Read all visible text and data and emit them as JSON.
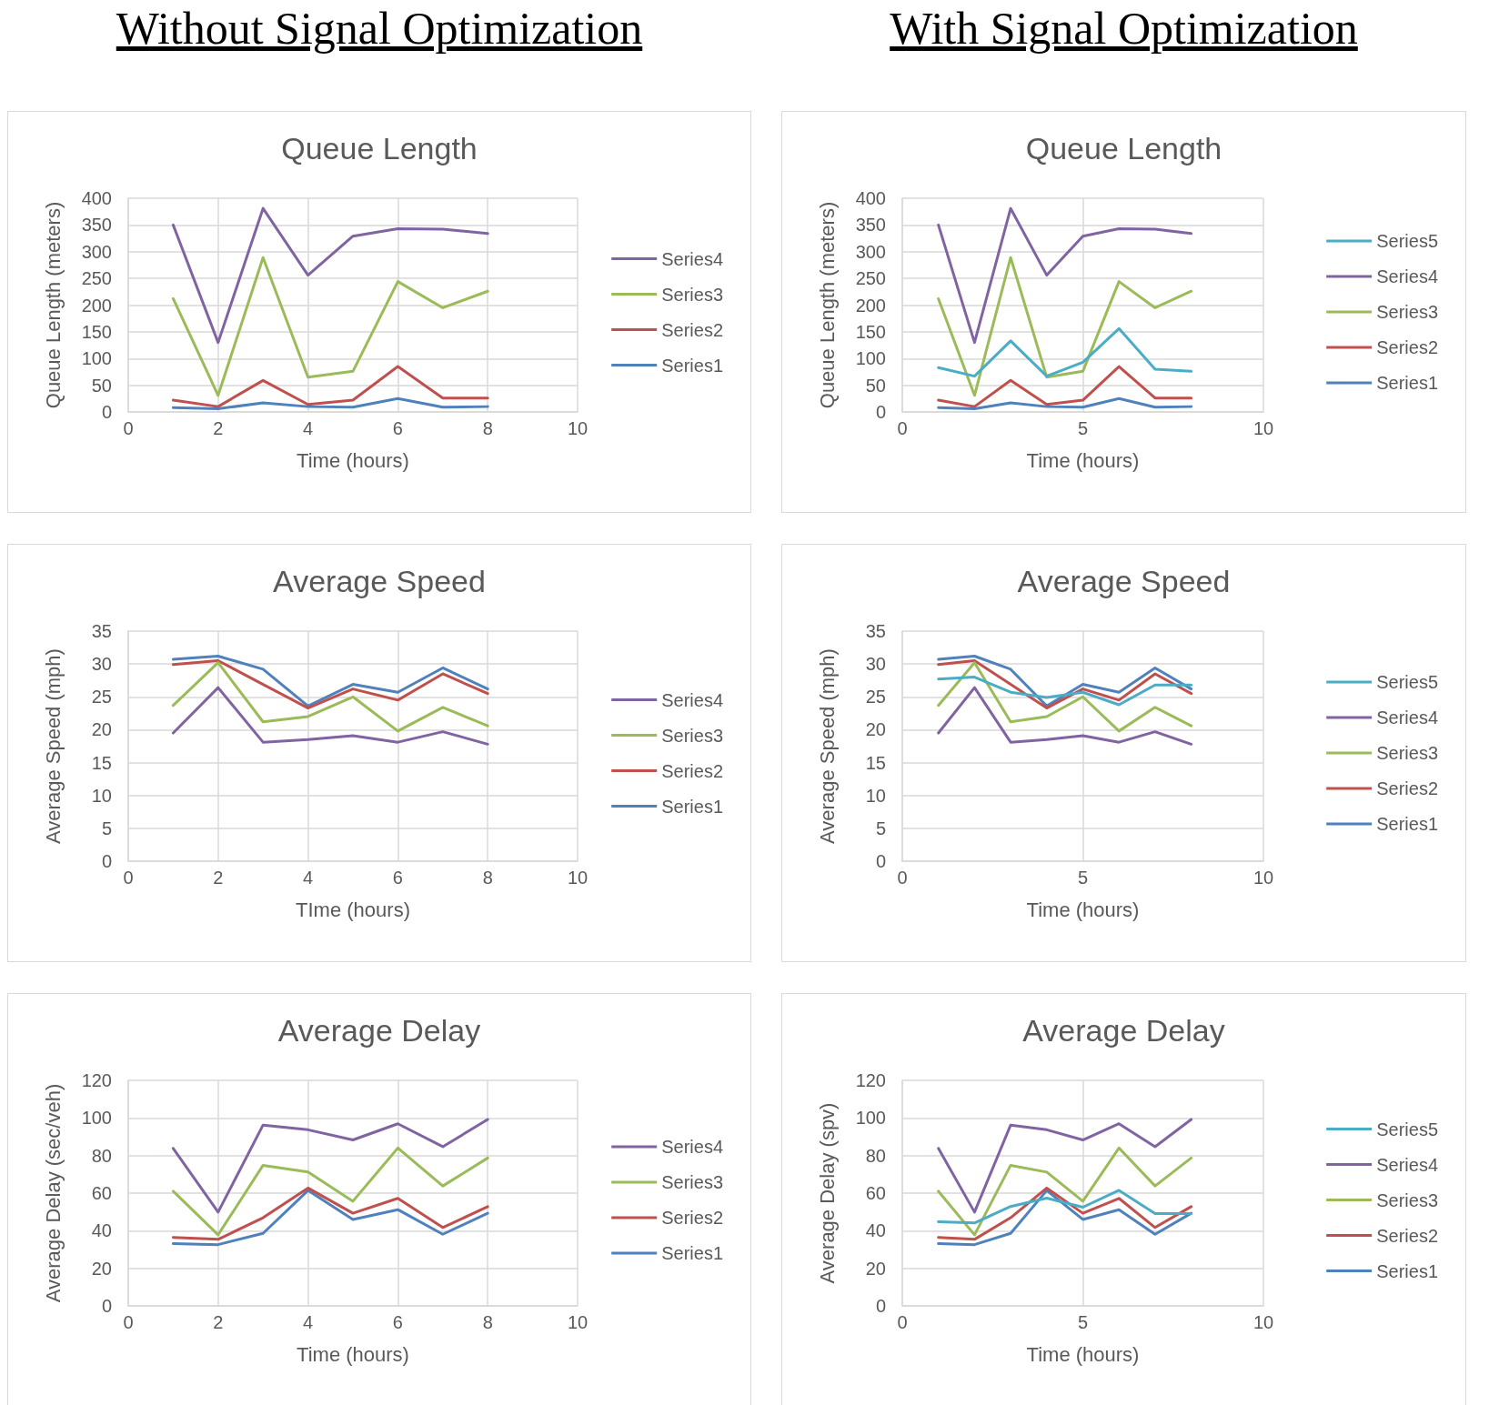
{
  "chart_data": [
    {
      "type": "line",
      "title": "Queue Length",
      "xlabel": "Time (hours)",
      "ylabel": "Queue Length (meters)",
      "annotations": [
        "Without Signal Optimization"
      ],
      "x": [
        1,
        2,
        3,
        4,
        5,
        6,
        7,
        8
      ],
      "xlim": [
        0,
        10
      ],
      "xticks": [
        0,
        2,
        4,
        6,
        8,
        10
      ],
      "ylim": [
        0,
        400
      ],
      "yticks": [
        0,
        50,
        100,
        150,
        200,
        250,
        300,
        350,
        400
      ],
      "grid": true,
      "legend": "right",
      "marker": "none",
      "line_style": "solid",
      "series": [
        {
          "name": "Series1",
          "color": "#4f81bd",
          "values": [
            8,
            6,
            17,
            10,
            9,
            25,
            9,
            10
          ]
        },
        {
          "name": "Series2",
          "color": "#c0504d",
          "values": [
            22,
            10,
            59,
            14,
            22,
            85,
            26,
            26
          ]
        },
        {
          "name": "Series3",
          "color": "#9bbb59",
          "values": [
            212,
            31,
            289,
            65,
            76,
            244,
            195,
            226
          ]
        },
        {
          "name": "Series4",
          "color": "#8064a2",
          "values": [
            350,
            130,
            381,
            256,
            329,
            343,
            342,
            334
          ]
        }
      ]
    },
    {
      "type": "line",
      "title": "Queue Length",
      "xlabel": "Time (hours)",
      "ylabel": "Queue Length (meters)",
      "annotations": [
        "With Signal Optimization"
      ],
      "x": [
        1,
        2,
        3,
        4,
        5,
        6,
        7,
        8
      ],
      "xlim": [
        0,
        10
      ],
      "xticks": [
        0,
        5,
        10
      ],
      "ylim": [
        0,
        400
      ],
      "yticks": [
        0,
        50,
        100,
        150,
        200,
        250,
        300,
        350,
        400
      ],
      "grid": true,
      "legend": "right",
      "marker": "none",
      "line_style": "solid",
      "series": [
        {
          "name": "Series1",
          "color": "#4f81bd",
          "values": [
            8,
            6,
            17,
            10,
            9,
            25,
            9,
            10
          ]
        },
        {
          "name": "Series2",
          "color": "#c0504d",
          "values": [
            22,
            10,
            59,
            14,
            22,
            85,
            26,
            26
          ]
        },
        {
          "name": "Series3",
          "color": "#9bbb59",
          "values": [
            212,
            31,
            289,
            65,
            76,
            244,
            195,
            226
          ]
        },
        {
          "name": "Series4",
          "color": "#8064a2",
          "values": [
            350,
            130,
            381,
            256,
            329,
            343,
            342,
            334
          ]
        },
        {
          "name": "Series5",
          "color": "#4bacc6",
          "values": [
            83,
            67,
            133,
            67,
            93,
            156,
            80,
            76
          ]
        }
      ]
    },
    {
      "type": "line",
      "title": "Average Speed",
      "xlabel": "TIme (hours)",
      "ylabel": "Average Speed (mph)",
      "x": [
        1,
        2,
        3,
        4,
        5,
        6,
        7,
        8
      ],
      "xlim": [
        0,
        10
      ],
      "xticks": [
        0,
        2,
        4,
        6,
        8,
        10
      ],
      "ylim": [
        0,
        35
      ],
      "yticks": [
        0,
        5,
        10,
        15,
        20,
        25,
        30,
        35
      ],
      "grid": true,
      "legend": "right",
      "marker": "none",
      "line_style": "solid",
      "series": [
        {
          "name": "Series1",
          "color": "#4f81bd",
          "values": [
            30.7,
            31.2,
            29.2,
            23.6,
            26.9,
            25.7,
            29.4,
            26.2
          ]
        },
        {
          "name": "Series2",
          "color": "#c0504d",
          "values": [
            29.9,
            30.5,
            26.9,
            23.3,
            26.2,
            24.5,
            28.5,
            25.5
          ]
        },
        {
          "name": "Series3",
          "color": "#9bbb59",
          "values": [
            23.7,
            30.2,
            21.2,
            22.0,
            25.0,
            19.8,
            23.4,
            20.6
          ]
        },
        {
          "name": "Series4",
          "color": "#8064a2",
          "values": [
            19.5,
            26.4,
            18.1,
            18.5,
            19.1,
            18.1,
            19.7,
            17.8
          ]
        }
      ]
    },
    {
      "type": "line",
      "title": "Average Speed",
      "xlabel": "Time (hours)",
      "ylabel": "Average Speed (mph)",
      "x": [
        1,
        2,
        3,
        4,
        5,
        6,
        7,
        8
      ],
      "xlim": [
        0,
        10
      ],
      "xticks": [
        0,
        5,
        10
      ],
      "ylim": [
        0,
        35
      ],
      "yticks": [
        0,
        5,
        10,
        15,
        20,
        25,
        30,
        35
      ],
      "grid": true,
      "legend": "right",
      "marker": "none",
      "line_style": "solid",
      "series": [
        {
          "name": "Series1",
          "color": "#4f81bd",
          "values": [
            30.7,
            31.2,
            29.2,
            23.6,
            26.9,
            25.7,
            29.4,
            26.2
          ]
        },
        {
          "name": "Series2",
          "color": "#c0504d",
          "values": [
            29.9,
            30.5,
            26.9,
            23.3,
            26.2,
            24.5,
            28.5,
            25.5
          ]
        },
        {
          "name": "Series3",
          "color": "#9bbb59",
          "values": [
            23.7,
            30.2,
            21.2,
            22.0,
            25.0,
            19.8,
            23.4,
            20.6
          ]
        },
        {
          "name": "Series4",
          "color": "#8064a2",
          "values": [
            19.5,
            26.4,
            18.1,
            18.5,
            19.1,
            18.1,
            19.7,
            17.8
          ]
        },
        {
          "name": "Series5",
          "color": "#4bacc6",
          "values": [
            27.7,
            28.0,
            25.7,
            24.9,
            25.7,
            23.8,
            26.8,
            26.8
          ]
        }
      ]
    },
    {
      "type": "line",
      "title": "Average Delay",
      "xlabel": "Time (hours)",
      "ylabel": "Average Delay (sec/veh)",
      "x": [
        1,
        2,
        3,
        4,
        5,
        6,
        7,
        8
      ],
      "xlim": [
        0,
        10
      ],
      "xticks": [
        0,
        2,
        4,
        6,
        8,
        10
      ],
      "ylim": [
        0,
        120
      ],
      "yticks": [
        0,
        20,
        40,
        60,
        80,
        100,
        120
      ],
      "grid": true,
      "legend": "right",
      "marker": "none",
      "line_style": "solid",
      "series": [
        {
          "name": "Series1",
          "color": "#4f81bd",
          "values": [
            33.1,
            32.6,
            38.6,
            61.4,
            46,
            51.2,
            38.1,
            49.3
          ]
        },
        {
          "name": "Series2",
          "color": "#c0504d",
          "values": [
            36.4,
            35.4,
            46.9,
            62.7,
            49.3,
            57.2,
            41.7,
            52.8
          ]
        },
        {
          "name": "Series3",
          "color": "#9bbb59",
          "values": [
            61,
            37.8,
            74.8,
            71.2,
            55.7,
            84,
            63.8,
            78.7
          ]
        },
        {
          "name": "Series4",
          "color": "#8064a2",
          "values": [
            83.8,
            49.9,
            96.2,
            93.7,
            88.3,
            96.9,
            84.7,
            99.2
          ]
        }
      ]
    },
    {
      "type": "line",
      "title": "Average Delay",
      "xlabel": "Time (hours)",
      "ylabel": "Average Delay (spv)",
      "x": [
        1,
        2,
        3,
        4,
        5,
        6,
        7,
        8
      ],
      "xlim": [
        0,
        10
      ],
      "xticks": [
        0,
        5,
        10
      ],
      "ylim": [
        0,
        120
      ],
      "yticks": [
        0,
        20,
        40,
        60,
        80,
        100,
        120
      ],
      "grid": true,
      "legend": "right",
      "marker": "none",
      "line_style": "solid",
      "series": [
        {
          "name": "Series1",
          "color": "#4f81bd",
          "values": [
            33.1,
            32.6,
            38.6,
            61.4,
            46,
            51.2,
            38.1,
            49.3
          ]
        },
        {
          "name": "Series2",
          "color": "#c0504d",
          "values": [
            36.4,
            35.4,
            46.9,
            62.7,
            49.3,
            57.2,
            41.7,
            52.8
          ]
        },
        {
          "name": "Series3",
          "color": "#9bbb59",
          "values": [
            61,
            37.8,
            74.8,
            71.2,
            55.7,
            84,
            63.8,
            78.7
          ]
        },
        {
          "name": "Series4",
          "color": "#8064a2",
          "values": [
            83.8,
            49.9,
            96.2,
            93.7,
            88.3,
            96.9,
            84.7,
            99.2
          ]
        },
        {
          "name": "Series5",
          "color": "#4bacc6",
          "values": [
            44.7,
            44.1,
            52.9,
            57.3,
            52.5,
            61.5,
            49.1,
            49.1
          ]
        }
      ]
    }
  ]
}
